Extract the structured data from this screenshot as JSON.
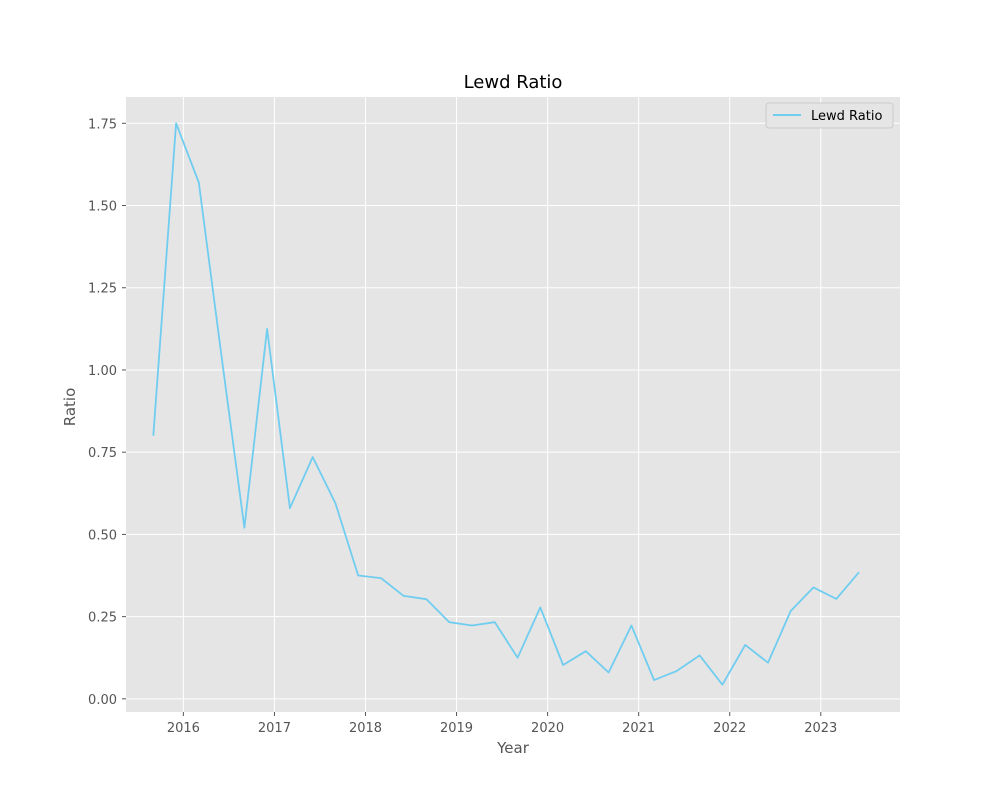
{
  "chart_data": {
    "type": "line",
    "title": "Lewd Ratio",
    "xlabel": "Year",
    "ylabel": "Ratio",
    "x_ticks": [
      "2016",
      "2017",
      "2018",
      "2019",
      "2020",
      "2021",
      "2022",
      "2023"
    ],
    "y_ticks": [
      "0.00",
      "0.25",
      "0.50",
      "0.75",
      "1.00",
      "1.25",
      "1.50",
      "1.75"
    ],
    "xlim": [
      2015.37,
      2023.87
    ],
    "ylim": [
      -0.04,
      1.83
    ],
    "grid": true,
    "legend_position": "top-right",
    "series": [
      {
        "name": "Lewd Ratio",
        "color": "#70cdf0",
        "x": [
          2015.67,
          2015.92,
          2016.17,
          2016.42,
          2016.67,
          2016.92,
          2017.17,
          2017.42,
          2017.67,
          2017.92,
          2018.17,
          2018.42,
          2018.67,
          2018.92,
          2019.17,
          2019.42,
          2019.67,
          2019.92,
          2020.17,
          2020.42,
          2020.67,
          2020.92,
          2021.17,
          2021.42,
          2021.67,
          2021.92,
          2022.17,
          2022.42,
          2022.67,
          2022.92,
          2023.17,
          2023.42
        ],
        "y": [
          0.8,
          1.75,
          1.57,
          1.04,
          0.52,
          1.125,
          0.58,
          0.735,
          0.595,
          0.375,
          0.367,
          0.313,
          0.303,
          0.233,
          0.223,
          0.233,
          0.125,
          0.278,
          0.103,
          0.145,
          0.08,
          0.223,
          0.057,
          0.085,
          0.132,
          0.043,
          0.164,
          0.11,
          0.267,
          0.339,
          0.304,
          0.385
        ]
      }
    ]
  },
  "colors": {
    "plot_background": "#e5e5e5",
    "grid": "#ffffff",
    "line": "#70cdf0"
  }
}
